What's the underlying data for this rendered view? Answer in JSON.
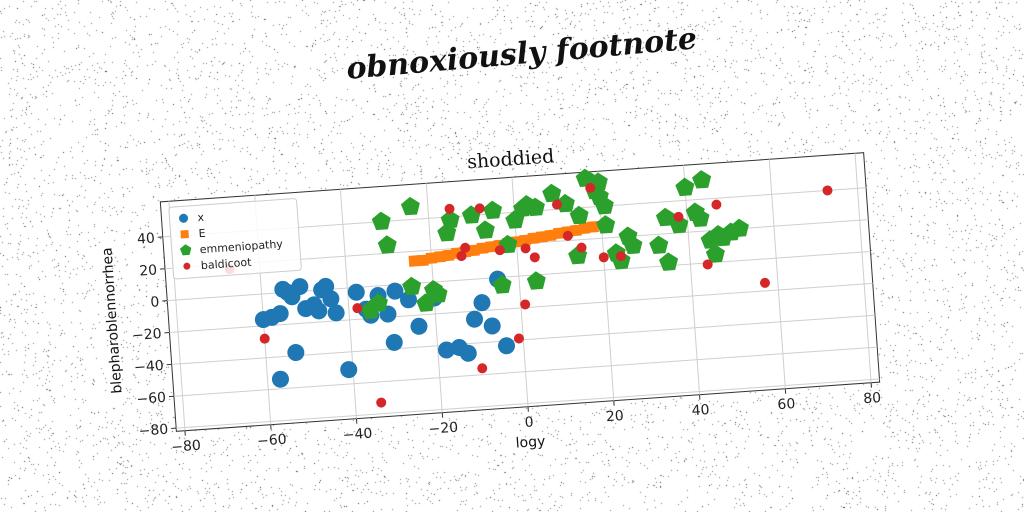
{
  "footnote": "obnoxiously footnote",
  "chart_data": {
    "type": "scatter",
    "title": "shoddied",
    "xlabel": "logy",
    "ylabel": "blepharoblennorrhea",
    "xlim": [
      -82,
      82
    ],
    "ylim": [
      -82,
      62
    ],
    "xticks": [
      -80,
      -60,
      -40,
      -20,
      0,
      20,
      40,
      60,
      80
    ],
    "yticks": [
      -80,
      -60,
      -40,
      -20,
      0,
      20,
      40
    ],
    "grid": true,
    "legend": "top-left",
    "series": [
      {
        "name": "x",
        "marker": "circle",
        "color": "#1f77b4",
        "points": [
          [
            -60,
            -16
          ],
          [
            -58,
            -15
          ],
          [
            -56,
            -13
          ],
          [
            -55,
            2
          ],
          [
            -54,
            0
          ],
          [
            -53,
            -3
          ],
          [
            -51,
            3
          ],
          [
            -50,
            -11
          ],
          [
            -48,
            -9
          ],
          [
            -47,
            -13
          ],
          [
            -46,
            0
          ],
          [
            -45,
            2
          ],
          [
            -44,
            -6
          ],
          [
            -43,
            -15
          ],
          [
            -38,
            -3
          ],
          [
            -36,
            -14
          ],
          [
            -35,
            -18
          ],
          [
            -33,
            -6
          ],
          [
            -31,
            -18
          ],
          [
            -29,
            -4
          ],
          [
            -26,
            -10
          ],
          [
            -24,
            -27
          ],
          [
            -20,
            -10
          ],
          [
            -18,
            -43
          ],
          [
            -15,
            -42
          ],
          [
            -13,
            -46
          ],
          [
            -11,
            -25
          ],
          [
            -9,
            -15
          ],
          [
            -7,
            -30
          ],
          [
            -5,
            -1
          ],
          [
            -4,
            -43
          ],
          [
            -30,
            -36
          ],
          [
            -41,
            -51
          ],
          [
            -57,
            -54
          ],
          [
            -53,
            -38
          ]
        ]
      },
      {
        "name": "E",
        "marker": "square",
        "color": "#ff7f0e",
        "points": [
          [
            -24,
            14
          ],
          [
            -22,
            14
          ],
          [
            -20,
            15
          ],
          [
            -18,
            15.5
          ],
          [
            -16,
            16
          ],
          [
            -14,
            17
          ],
          [
            -12,
            17.5
          ],
          [
            -10,
            18
          ],
          [
            -8,
            19
          ],
          [
            -6,
            19.5
          ],
          [
            -4,
            20
          ],
          [
            -2,
            21
          ],
          [
            0,
            21.5
          ],
          [
            2,
            22
          ],
          [
            4,
            23
          ],
          [
            6,
            23.5
          ],
          [
            8,
            24
          ],
          [
            10,
            25
          ],
          [
            12,
            25.5
          ],
          [
            14,
            26
          ],
          [
            16,
            27
          ],
          [
            18,
            27.5
          ]
        ]
      },
      {
        "name": "emmeniopathy",
        "marker": "pentagon",
        "color": "#2ca02c",
        "points": [
          [
            -31,
            40
          ],
          [
            -30,
            25
          ],
          [
            -24,
            48
          ],
          [
            -22,
            -13
          ],
          [
            -20,
            -5
          ],
          [
            -19,
            -8
          ],
          [
            -16,
            30
          ],
          [
            -15,
            38
          ],
          [
            -10,
            40
          ],
          [
            -7,
            30
          ],
          [
            -5,
            42
          ],
          [
            -2,
            20
          ],
          [
            0,
            35
          ],
          [
            2,
            42
          ],
          [
            3,
            44
          ],
          [
            4,
            -4
          ],
          [
            5,
            42
          ],
          [
            9,
            50
          ],
          [
            12,
            43
          ],
          [
            14,
            10
          ],
          [
            15,
            35
          ],
          [
            17,
            58
          ],
          [
            19,
            50
          ],
          [
            20,
            55
          ],
          [
            20,
            46
          ],
          [
            21,
            40
          ],
          [
            21,
            28
          ],
          [
            23,
            10
          ],
          [
            24,
            5
          ],
          [
            26,
            20
          ],
          [
            27,
            14
          ],
          [
            33,
            13
          ],
          [
            35,
            30
          ],
          [
            35,
            2
          ],
          [
            38,
            25
          ],
          [
            40,
            48
          ],
          [
            42,
            32
          ],
          [
            43,
            28
          ],
          [
            44,
            52
          ],
          [
            45,
            14
          ],
          [
            46,
            5
          ],
          [
            47,
            17
          ],
          [
            48,
            15
          ],
          [
            50,
            18
          ],
          [
            52,
            20
          ],
          [
            -33,
            -11
          ],
          [
            -35,
            -15
          ],
          [
            -25,
            -2
          ],
          [
            -4,
            -5
          ]
        ]
      },
      {
        "name": "baldicoot",
        "marker": "circle",
        "color": "#d62728",
        "points": [
          [
            -67,
            17
          ],
          [
            -60,
            -28
          ],
          [
            -34,
            -73
          ],
          [
            -38,
            -13
          ],
          [
            -15,
            45
          ],
          [
            -12,
            20
          ],
          [
            -13,
            15
          ],
          [
            -10,
            -56
          ],
          [
            -8,
            44
          ],
          [
            -4,
            17
          ],
          [
            -1,
            -39
          ],
          [
            1,
            -18
          ],
          [
            2,
            17
          ],
          [
            4,
            11
          ],
          [
            10,
            43
          ],
          [
            12,
            23
          ],
          [
            15,
            15
          ],
          [
            18,
            52
          ],
          [
            20,
            8
          ],
          [
            24,
            8
          ],
          [
            38,
            30
          ],
          [
            44,
            -1
          ],
          [
            47,
            36
          ],
          [
            57,
            -15
          ],
          [
            73,
            40
          ]
        ]
      }
    ]
  }
}
